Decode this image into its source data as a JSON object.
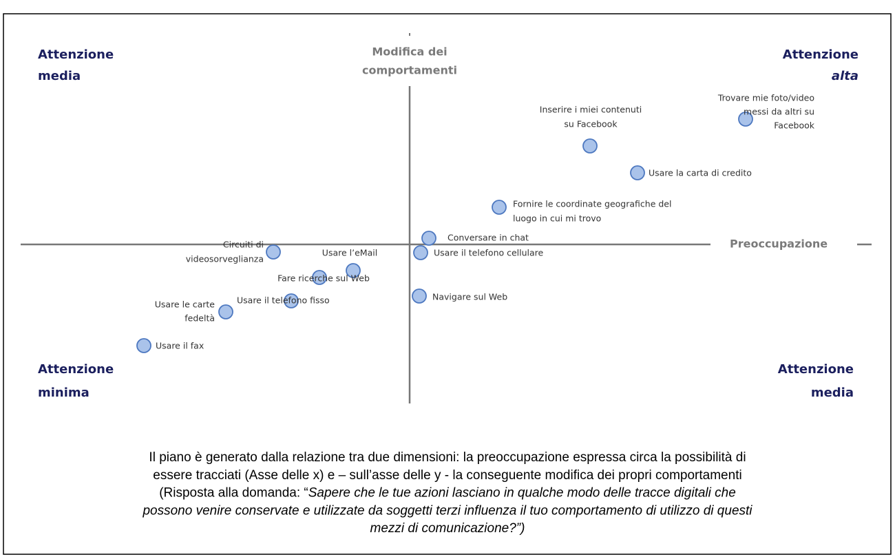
{
  "quadrants": {
    "top_left": [
      "Attenzione",
      "media"
    ],
    "top_right": [
      "Attenzione",
      "alta"
    ],
    "bottom_left": [
      "Attenzione",
      "minima"
    ],
    "bottom_right": [
      "Attenzione",
      "media"
    ]
  },
  "axis_y_label": [
    "Modifica dei",
    "comportamenti"
  ],
  "axis_x_label": "Preoccupazione",
  "nodes": [
    {
      "label": [
        "Trovare mie foto/video",
        "messi da altri su",
        "Facebook"
      ]
    },
    {
      "label": [
        "Inserire i miei contenuti",
        "su Facebook"
      ]
    },
    {
      "label": [
        "Usare la carta di credito"
      ]
    },
    {
      "label": [
        "Fornire le coordinate geografiche del",
        "luogo in cui mi trovo"
      ]
    },
    {
      "label": [
        "Conversare in chat"
      ]
    },
    {
      "label": [
        "Usare il telefono cellulare"
      ]
    },
    {
      "label": [
        "Navigare sul Web"
      ]
    },
    {
      "label": [
        "Circuiti di",
        "videosorveglianza"
      ]
    },
    {
      "label": [
        "Usare l’eMail"
      ]
    },
    {
      "label": [
        "Fare ricerche sul Web"
      ]
    },
    {
      "label": [
        "Usare il telefono fisso"
      ]
    },
    {
      "label": [
        "Usare le carte",
        "fedeltà"
      ]
    },
    {
      "label": [
        "Usare il fax"
      ]
    }
  ],
  "caption": [
    [
      {
        "text": "Il piano è generato dalla relazione tra due dimensioni: la preoccupazione espressa circa la possibilità di"
      }
    ],
    [
      {
        "text": "essere tracciati  (Asse delle x) e – sull’asse delle y - la conseguente modifica dei propri comportamenti"
      }
    ],
    [
      {
        "text": "(Risposta alla domanda: “"
      },
      {
        "text": "Sapere che le tue azioni lasciano in qualche modo delle tracce digitali che",
        "italic": true
      }
    ],
    [
      {
        "text": "possono venire conservate e utilizzate da soggetti terzi influenza il tuo comportamento di utilizzo di questi",
        "italic": true
      }
    ],
    [
      {
        "text": "mezzi di comunicazione?”)",
        "italic": true
      }
    ]
  ]
}
